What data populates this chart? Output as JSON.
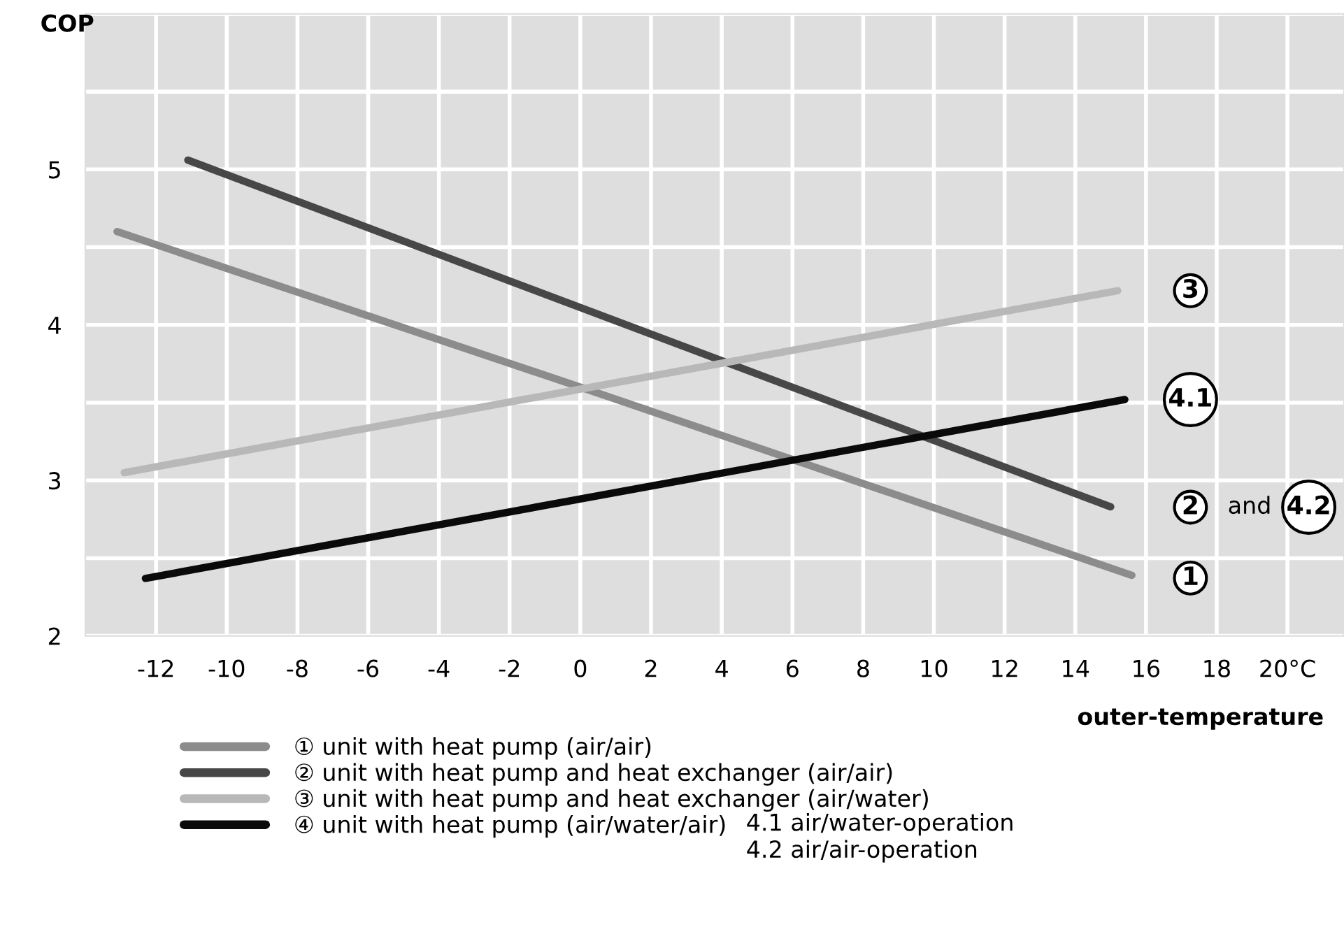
{
  "chart_data": {
    "type": "line",
    "ylabel": "COP",
    "xlabel": "outer-temperature",
    "xlim": [
      -14,
      21.6
    ],
    "ylim": [
      2,
      6
    ],
    "xticks": [
      -12,
      -10,
      -8,
      -6,
      -4,
      -2,
      0,
      2,
      4,
      6,
      8,
      10,
      12,
      14,
      16,
      18,
      {
        "value": 20,
        "label": "20°C"
      }
    ],
    "yticks": [
      2,
      {
        "value": 2.5,
        "label": null
      },
      3,
      {
        "value": 3.5,
        "label": null
      },
      4,
      {
        "value": 4.5,
        "label": null
      },
      5,
      {
        "value": 5.5,
        "label": null
      },
      {
        "value": 6,
        "label": null
      }
    ],
    "grid": true,
    "legend": "bottom left",
    "marker": "none",
    "line_style": "solid",
    "series": [
      {
        "name": "① unit with heat pump (air/air)",
        "color": "#8c8c8c",
        "x": [
          -13.1,
          0,
          15.6
        ],
        "values": [
          4.6,
          3.6,
          2.39
        ]
      },
      {
        "name": "② unit with heat pump and heat exchanger (air/air)",
        "color": "#474747",
        "x": [
          -11.1,
          15.0
        ],
        "values": [
          5.06,
          2.83
        ]
      },
      {
        "name": "③ unit with heat pump and heat exchanger (air/water)",
        "color": "#b8b8b8",
        "x": [
          -12.9,
          15.2
        ],
        "values": [
          3.05,
          4.22
        ]
      },
      {
        "name": "④ unit with heat pump (air/water/air)",
        "color": "#0a0a0a",
        "x": [
          -12.3,
          15.4
        ],
        "values": [
          2.37,
          3.52
        ]
      }
    ],
    "annotations": [
      "3",
      "4.1",
      "2",
      "and",
      "4.2",
      "1",
      "4.1 air/water-operation\n4.2 air/air-operation"
    ]
  }
}
